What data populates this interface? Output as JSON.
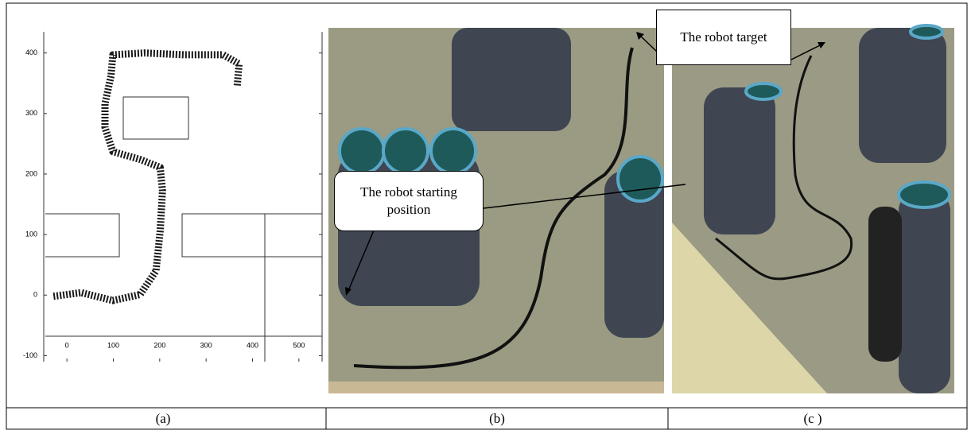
{
  "chart_data": {
    "type": "line",
    "x": [
      -29,
      31,
      99,
      158,
      192,
      201,
      206,
      201,
      158,
      99,
      82,
      82,
      95,
      99,
      167,
      252,
      337,
      371,
      367
    ],
    "series": [
      {
        "color": "#1a1a1a",
        "values": [
          -2,
          4,
          -9,
          1,
          40,
          106,
          172,
          211,
          224,
          237,
          277,
          316,
          362,
          397,
          400,
          397,
          397,
          382,
          345
        ]
      }
    ],
    "xlim": [
      -50,
      550
    ],
    "ylim": [
      -110,
      435
    ],
    "xticks": [
      0,
      100,
      200,
      300,
      400,
      500
    ],
    "yticks": [
      -100,
      0,
      100,
      200,
      300,
      400
    ]
  },
  "callouts": {
    "target": "The robot target",
    "start": "The robot starting position"
  },
  "captions": [
    "(a)",
    "(b)",
    "(c )"
  ]
}
